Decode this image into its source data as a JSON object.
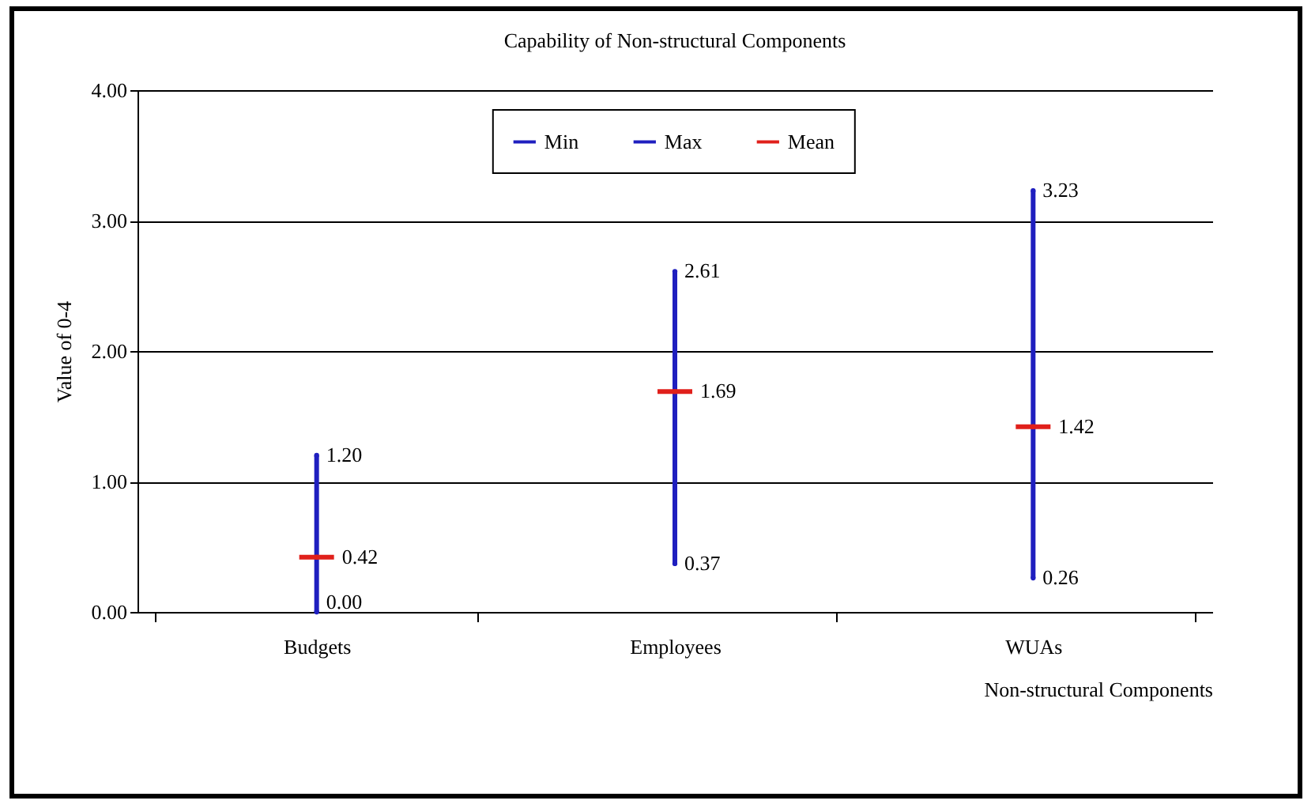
{
  "chart_data": {
    "type": "scatter",
    "title": "Capability of Non-structural Components",
    "xlabel": "Non-structural Components",
    "ylabel": "Value of 0-4",
    "categories": [
      "Budgets",
      "Employees",
      "WUAs"
    ],
    "series": [
      {
        "type": "bar",
        "color": "#1f1fbf",
        "base": [
          0,
          0.37,
          0.26
        ],
        "values": [
          1.2,
          2.24,
          2.97
        ]
      },
      {
        "name": "Min",
        "color": "#1f1fbf",
        "marker": "none",
        "values": [
          0,
          0.37,
          0.26
        ],
        "value_labels": [
          "0.00",
          "0.37",
          "0.26"
        ]
      },
      {
        "name": "Max",
        "color": "#1f1fbf",
        "marker": "none",
        "values": [
          1.2,
          2.61,
          3.23
        ],
        "value_labels": [
          "1.20",
          "2.61",
          "3.23"
        ]
      },
      {
        "name": "Mean",
        "color": "#e0201b",
        "values": [
          0.42,
          1.69,
          1.42
        ],
        "value_labels": [
          "0.42",
          "1.69",
          "1.42"
        ]
      }
    ],
    "ylim": [
      0,
      4
    ],
    "yticks": [
      {
        "value": 0,
        "label": "0.00"
      },
      {
        "value": 1,
        "label": "1.00"
      },
      {
        "value": 2,
        "label": "2.00"
      },
      {
        "value": 3,
        "label": "3.00"
      },
      {
        "value": 4,
        "label": "4.00"
      }
    ],
    "grid": "y",
    "legend": "top"
  }
}
